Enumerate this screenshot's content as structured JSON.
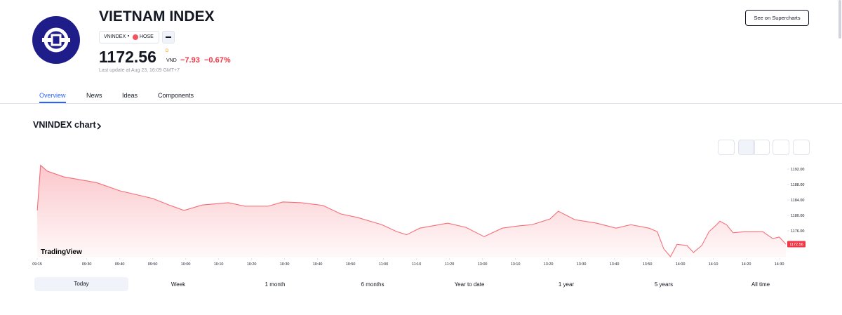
{
  "header": {
    "title": "VIETNAM INDEX",
    "symbol": "VNINDEX",
    "exchange": "HOSE",
    "price": "1172.56",
    "price_flag": "D",
    "currency": "VND",
    "change": "−7.93",
    "change_pct": "−0.67%",
    "last_update": "Last update at Aug 23, 16:09 GMT+7",
    "button": "See on Supercharts"
  },
  "tabs": [
    "Overview",
    "News",
    "Ideas",
    "Components"
  ],
  "section_title": "VNINDEX chart",
  "ranges": [
    "Today",
    "Week",
    "1 month",
    "6 months",
    "Year to date",
    "1 year",
    "5 years",
    "All time"
  ],
  "chart_data": {
    "type": "area",
    "watermark": "TradingView",
    "color": "#f23645",
    "x": [
      0,
      1,
      3,
      8,
      18,
      25,
      35,
      40,
      44.5,
      50,
      58,
      63,
      70,
      74.5,
      80,
      86.6,
      92,
      97,
      104.5,
      109,
      112,
      116,
      124.5,
      130,
      135.5,
      141,
      146,
      150,
      155.5,
      158,
      163,
      169.6,
      175.5,
      180,
      185.5,
      188,
      190,
      192,
      194,
      197,
      199,
      201.5,
      203.7,
      206,
      207,
      209,
      211,
      214.5,
      220,
      223,
      225,
      227
    ],
    "values": [
      1181.3,
      1193,
      1191.5,
      1190,
      1188.5,
      1186.4,
      1184.4,
      1182.7,
      1181.3,
      1182.7,
      1183.3,
      1182.4,
      1182.4,
      1183.5,
      1183.3,
      1182.6,
      1180.4,
      1179.5,
      1177.6,
      1175.8,
      1175,
      1176.7,
      1178,
      1176.9,
      1174.5,
      1176.7,
      1177.3,
      1177.6,
      1179.1,
      1181.1,
      1178.9,
      1178,
      1176.7,
      1177.6,
      1176.7,
      1175.8,
      1171.3,
      1169.3,
      1172.5,
      1172.2,
      1170.4,
      1172.2,
      1175.8,
      1177.6,
      1178.5,
      1177.6,
      1175.5,
      1175.8,
      1175.8,
      1174,
      1174.4,
      1172.56
    ],
    "last_value_label": "1172.56",
    "xlim": [
      -1.3,
      227
    ],
    "xticks": [
      {
        "value": 0,
        "label": "09:15"
      },
      {
        "value": 15,
        "label": "09:30"
      },
      {
        "value": 25,
        "label": "09:40"
      },
      {
        "value": 35,
        "label": "09:50"
      },
      {
        "value": 45,
        "label": "10:00"
      },
      {
        "value": 55,
        "label": "10:10"
      },
      {
        "value": 65,
        "label": "10:20"
      },
      {
        "value": 75,
        "label": "10:30"
      },
      {
        "value": 85,
        "label": "10:40"
      },
      {
        "value": 95,
        "label": "10:50"
      },
      {
        "value": 105,
        "label": "11:00"
      },
      {
        "value": 115,
        "label": "11:10"
      },
      {
        "value": 125,
        "label": "11:20"
      },
      {
        "value": 135,
        "label": "13:00"
      },
      {
        "value": 145,
        "label": "13:10"
      },
      {
        "value": 155,
        "label": "13:20"
      },
      {
        "value": 165,
        "label": "13:30"
      },
      {
        "value": 175,
        "label": "13:40"
      },
      {
        "value": 185,
        "label": "13:50"
      },
      {
        "value": 195,
        "label": "14:00"
      },
      {
        "value": 205,
        "label": "14:10"
      },
      {
        "value": 215,
        "label": "14:20"
      },
      {
        "value": 225,
        "label": "14:30"
      }
    ],
    "ylim": [
      1169.1,
      1193.65
    ],
    "yticks": [
      {
        "value": 1192,
        "label": "1192.00"
      },
      {
        "value": 1188,
        "label": "1188.00"
      },
      {
        "value": 1184,
        "label": "1184.00"
      },
      {
        "value": 1180,
        "label": "1180.00"
      },
      {
        "value": 1176,
        "label": "1176.00"
      }
    ]
  }
}
